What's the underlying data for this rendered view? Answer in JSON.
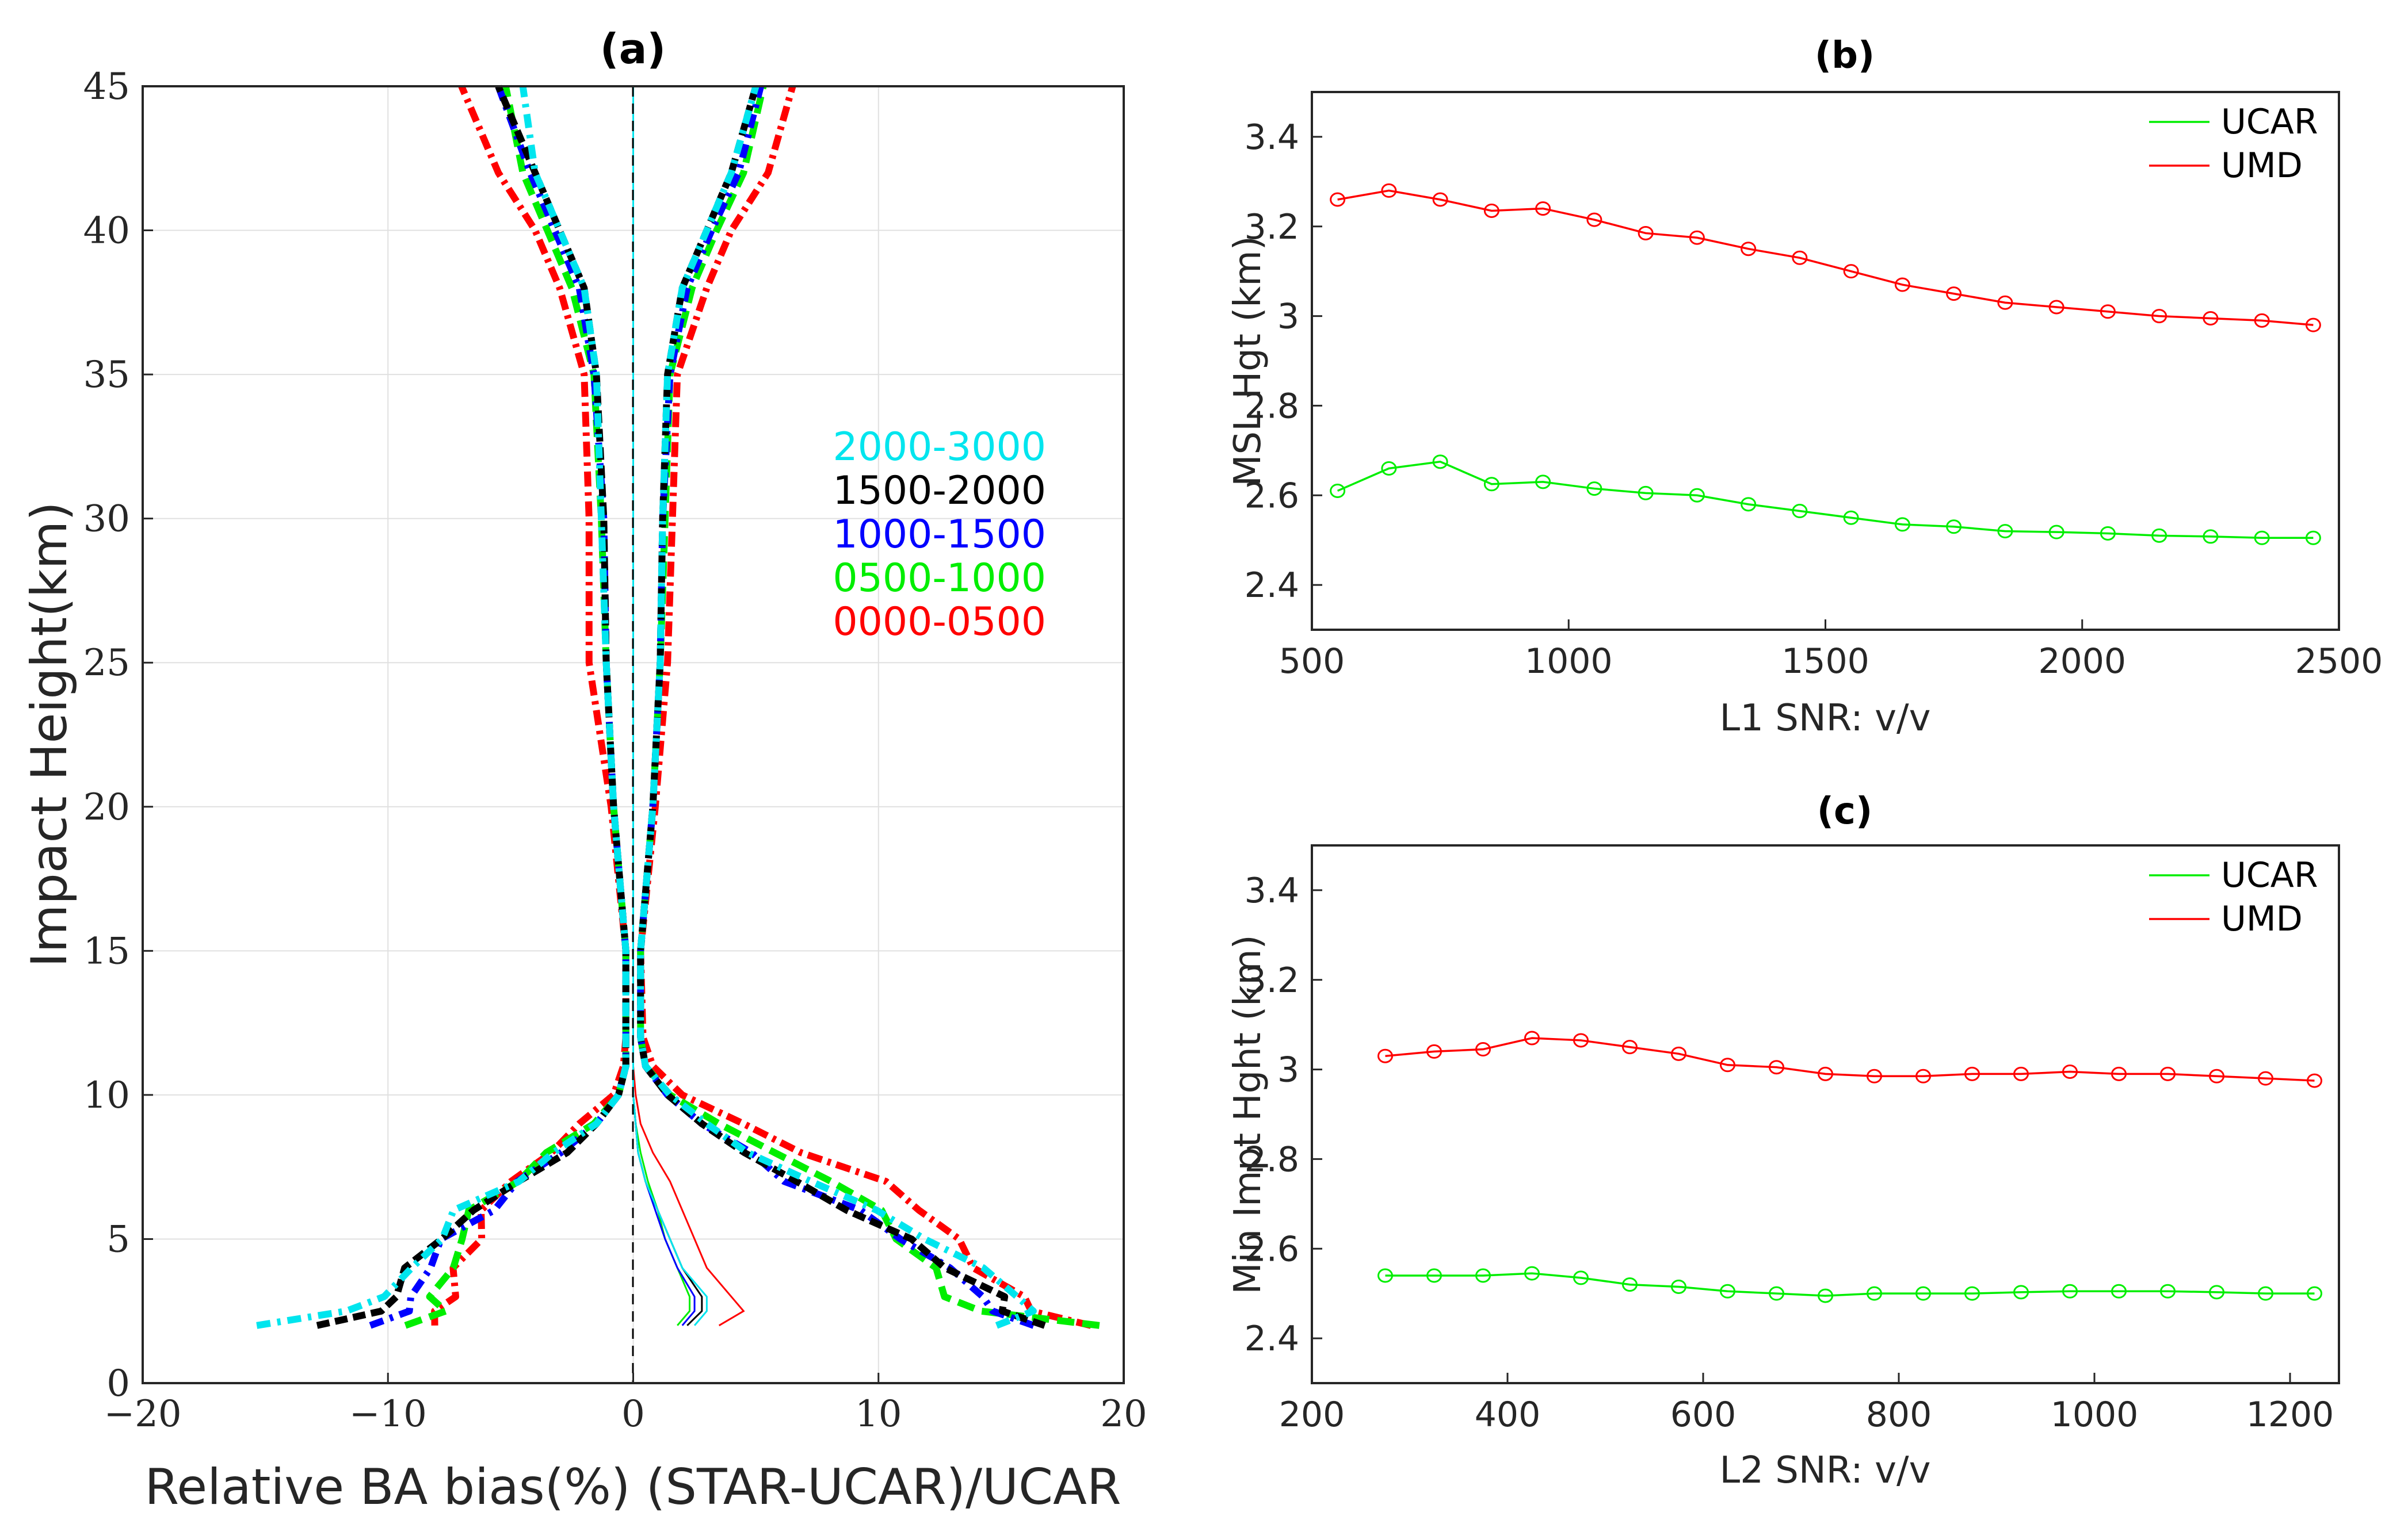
{
  "figure": {
    "panel_a_title": "(a)",
    "panel_b_title": "(b)",
    "panel_c_title": "(c)"
  },
  "colors": {
    "cyan": "#00e5ee",
    "black": "#000000",
    "blue": "#0000ff",
    "green": "#00ee00",
    "red": "#ff0000",
    "grid": "#e0e0e0",
    "axis": "#262626"
  },
  "chart_data": [
    {
      "type": "line",
      "panel": "(a)",
      "title": "(a)",
      "xlabel": "Relative BA bias(%) (STAR-UCAR)/UCAR",
      "ylabel": "Impact Height(km)",
      "xlim": [
        -20,
        20
      ],
      "ylim": [
        0,
        45
      ],
      "xticks": [
        -20,
        -10,
        0,
        10,
        20
      ],
      "xtick_labels": [
        "−20",
        "−10",
        "0",
        "10",
        "20"
      ],
      "yticks": [
        0,
        5,
        10,
        15,
        20,
        25,
        30,
        35,
        40,
        45
      ],
      "ytick_labels": [
        "0",
        "5",
        "10",
        "15",
        "20",
        "25",
        "30",
        "35",
        "40",
        "45"
      ],
      "grid": true,
      "legend_position": "right",
      "heights_km": [
        2,
        2.5,
        3,
        4,
        5,
        6,
        7,
        8,
        9,
        10,
        11,
        12,
        15,
        20,
        25,
        30,
        35,
        38,
        40,
        42,
        45
      ],
      "series": [
        {
          "name": "2000-3000",
          "color": "cyan",
          "spread_pos": [
            15,
            16,
            16,
            14,
            12,
            10,
            7,
            5,
            3,
            1.5,
            0.5,
            0.3,
            0.3,
            0.8,
            1.1,
            1.2,
            1.4,
            2.0,
            3.0,
            4.0,
            5.0
          ],
          "spread_neg": [
            -15,
            -12,
            -10,
            -9,
            -8,
            -7,
            -5,
            -3,
            -1.5,
            -0.6,
            -0.3,
            -0.3,
            -0.3,
            -0.8,
            -1.1,
            -1.3,
            -1.5,
            -2.0,
            -3.0,
            -4.0,
            -4.5
          ],
          "mean": [
            2.5,
            3,
            3,
            2,
            1.5,
            1,
            0.5,
            0.2,
            0.1,
            0,
            0,
            0,
            0,
            0,
            0,
            0,
            0,
            0,
            0,
            0,
            0
          ]
        },
        {
          "name": "1500-2000",
          "color": "black",
          "spread_pos": [
            17,
            15,
            15,
            13,
            11,
            9,
            6.5,
            4.5,
            2.8,
            1.4,
            0.5,
            0.3,
            0.3,
            0.8,
            1.1,
            1.2,
            1.4,
            2.0,
            3.0,
            4.0,
            5.0
          ],
          "spread_neg": [
            -13,
            -10,
            -10,
            -9,
            -8,
            -6.5,
            -4.5,
            -3,
            -1.5,
            -0.6,
            -0.3,
            -0.3,
            -0.3,
            -0.8,
            -1.1,
            -1.2,
            -1.5,
            -2.0,
            -3.0,
            -4.0,
            -5.5
          ],
          "mean": [
            2.2,
            2.8,
            2.8,
            2,
            1.5,
            1,
            0.5,
            0.2,
            0.1,
            0,
            0,
            0,
            0,
            0,
            0,
            0,
            0,
            0,
            0,
            0,
            0
          ]
        },
        {
          "name": "1000-1500",
          "color": "blue",
          "spread_pos": [
            16,
            15,
            14,
            13,
            11,
            9,
            6.5,
            4.5,
            2.8,
            1.4,
            0.5,
            0.3,
            0.3,
            0.8,
            1.1,
            1.2,
            1.5,
            2.2,
            3.2,
            4.3,
            5.2
          ],
          "spread_neg": [
            -11,
            -9,
            -9,
            -8.5,
            -7.5,
            -6,
            -4.5,
            -3,
            -1.5,
            -0.6,
            -0.3,
            -0.3,
            -0.3,
            -0.8,
            -1.1,
            -1.2,
            -1.6,
            -2.2,
            -3.2,
            -4.2,
            -5.5
          ],
          "mean": [
            2.0,
            2.5,
            2.5,
            1.8,
            1.3,
            0.9,
            0.5,
            0.2,
            0.1,
            0,
            0,
            0,
            0,
            0,
            0,
            0,
            0,
            0,
            0,
            0,
            0
          ]
        },
        {
          "name": "0500-1000",
          "color": "green",
          "spread_pos": [
            19,
            14,
            13,
            12,
            11,
            10,
            8,
            6,
            3.5,
            1.5,
            0.5,
            0.3,
            0.3,
            0.8,
            1.1,
            1.3,
            1.5,
            2.4,
            3.4,
            4.5,
            5.3
          ],
          "spread_neg": [
            -9,
            -8,
            -8,
            -7.5,
            -7,
            -6.5,
            -5,
            -3.2,
            -1.6,
            -0.6,
            -0.3,
            -0.3,
            -0.3,
            -0.8,
            -1.1,
            -1.3,
            -1.6,
            -2.5,
            -3.5,
            -4.5,
            -5.2
          ],
          "mean": [
            1.8,
            2.3,
            2.3,
            1.8,
            1.3,
            1.0,
            0.6,
            0.3,
            0.1,
            0,
            0,
            0,
            0,
            0,
            0,
            0,
            0,
            0,
            0,
            0,
            0
          ]
        },
        {
          "name": "0000-0500",
          "color": "red",
          "spread_pos": [
            19,
            16,
            16,
            14,
            13,
            12,
            10,
            7,
            4.5,
            2,
            0.8,
            0.4,
            0.3,
            0.9,
            1.4,
            1.6,
            1.8,
            3.0,
            4.0,
            5.5,
            6.5
          ],
          "spread_neg": [
            -8,
            -8,
            -7.5,
            -7,
            -6.5,
            -6,
            -5,
            -3.5,
            -2.2,
            -0.8,
            -0.4,
            -0.3,
            -0.3,
            -0.9,
            -1.8,
            -1.8,
            -2.0,
            -3.0,
            -4.0,
            -5.5,
            -7.0
          ],
          "mean": [
            3.5,
            4.5,
            4,
            3,
            2.5,
            2,
            1.5,
            0.8,
            0.3,
            0.1,
            0,
            0,
            0,
            0,
            0,
            0,
            0,
            0,
            0,
            0,
            0
          ]
        }
      ]
    },
    {
      "type": "line",
      "panel": "(b)",
      "title": "(b)",
      "xlabel": "L1 SNR: v/v",
      "ylabel": "MSL Hgt (km)",
      "xlim": [
        500,
        2500
      ],
      "ylim": [
        2.3,
        3.5
      ],
      "xticks": [
        500,
        1000,
        1500,
        2000,
        2500
      ],
      "yticks": [
        2.4,
        2.6,
        2.8,
        3.0,
        3.2,
        3.4
      ],
      "xtick_labels": [
        "500",
        "1000",
        "1500",
        "2000",
        "2500"
      ],
      "ytick_labels": [
        "2.4",
        "2.6",
        "2.8",
        "3",
        "3.2",
        "3.4"
      ],
      "grid": false,
      "legend_position": "top-right",
      "x": [
        550,
        650,
        750,
        850,
        950,
        1050,
        1150,
        1250,
        1350,
        1450,
        1550,
        1650,
        1750,
        1850,
        1950,
        2050,
        2150,
        2250,
        2350,
        2450
      ],
      "series": [
        {
          "name": "UCAR",
          "color": "green",
          "values": [
            2.61,
            2.66,
            2.675,
            2.625,
            2.63,
            2.615,
            2.605,
            2.6,
            2.58,
            2.565,
            2.55,
            2.535,
            2.53,
            2.52,
            2.518,
            2.515,
            2.51,
            2.508,
            2.505,
            2.505
          ]
        },
        {
          "name": "UMD",
          "color": "red",
          "values": [
            3.26,
            3.28,
            3.26,
            3.235,
            3.24,
            3.215,
            3.185,
            3.175,
            3.15,
            3.13,
            3.1,
            3.07,
            3.05,
            3.03,
            3.02,
            3.01,
            3.0,
            2.995,
            2.99,
            2.98
          ]
        }
      ]
    },
    {
      "type": "line",
      "panel": "(c)",
      "title": "(c)",
      "xlabel": "L2 SNR: v/v",
      "ylabel": "Min Impt Hght (km)",
      "xlim": [
        200,
        1250
      ],
      "ylim": [
        2.3,
        3.5
      ],
      "xticks": [
        200,
        400,
        600,
        800,
        1000,
        1200
      ],
      "yticks": [
        2.4,
        2.6,
        2.8,
        3.0,
        3.2,
        3.4
      ],
      "xtick_labels": [
        "200",
        "400",
        "600",
        "800",
        "1000",
        "1200"
      ],
      "ytick_labels": [
        "2.4",
        "2.6",
        "2.8",
        "3",
        "3.2",
        "3.4"
      ],
      "grid": false,
      "legend_position": "top-right",
      "x": [
        275,
        325,
        375,
        425,
        475,
        525,
        575,
        625,
        675,
        725,
        775,
        825,
        875,
        925,
        975,
        1025,
        1075,
        1125,
        1175,
        1225
      ],
      "series": [
        {
          "name": "UCAR",
          "color": "green",
          "values": [
            2.54,
            2.54,
            2.54,
            2.545,
            2.535,
            2.52,
            2.515,
            2.505,
            2.5,
            2.495,
            2.5,
            2.5,
            2.5,
            2.503,
            2.505,
            2.505,
            2.505,
            2.503,
            2.5,
            2.5
          ]
        },
        {
          "name": "UMD",
          "color": "red",
          "values": [
            3.03,
            3.04,
            3.045,
            3.07,
            3.065,
            3.05,
            3.035,
            3.01,
            3.005,
            2.99,
            2.985,
            2.985,
            2.99,
            2.99,
            2.995,
            2.99,
            2.99,
            2.985,
            2.98,
            2.975
          ]
        }
      ]
    }
  ]
}
